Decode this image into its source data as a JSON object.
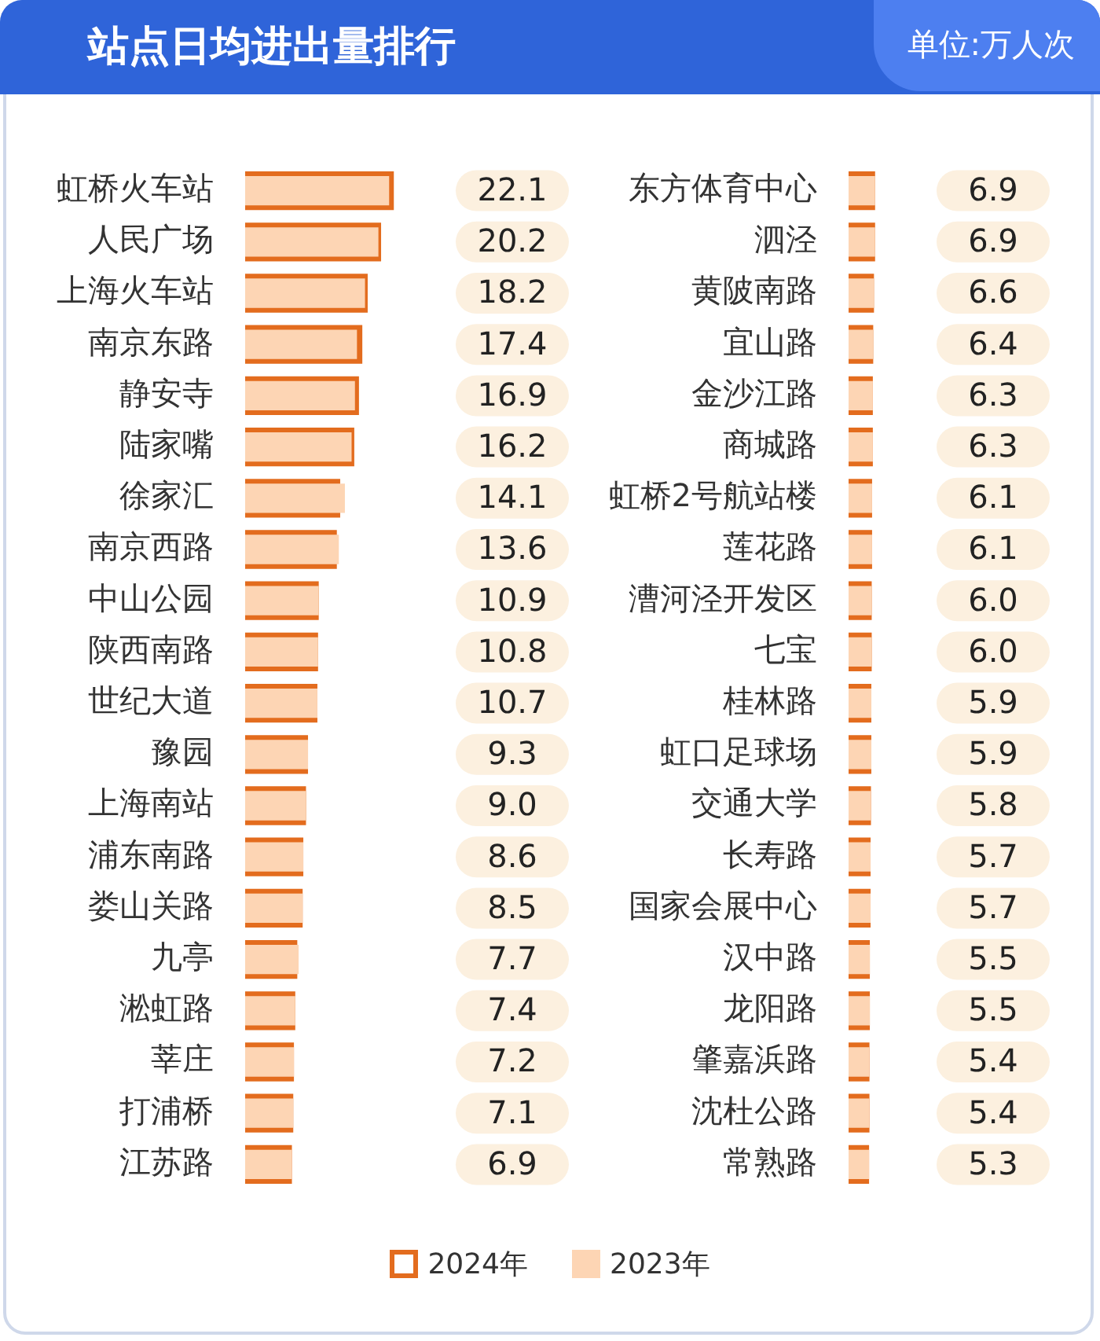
{
  "chart_data": [
    {
      "type": "bar",
      "orientation": "horizontal",
      "title": "站点日均进出量排行",
      "annotations": [
        "单位:万人次"
      ],
      "legend": "bottom",
      "tick_labels": "y",
      "categories": [
        "虹桥火车站",
        "人民广场",
        "上海火车站",
        "南京东路",
        "静安寺",
        "陆家嘴",
        "徐家汇",
        "南京西路",
        "中山公园",
        "陕西南路",
        "世纪大道",
        "豫园",
        "上海南站",
        "浦东南路",
        "娄山关路",
        "九亭",
        "淞虹路",
        "莘庄",
        "打浦桥",
        "江苏路"
      ],
      "series": [
        {
          "name": "2024年",
          "color": "#e36c1e",
          "values": [
            22.1,
            20.2,
            18.2,
            17.4,
            16.9,
            16.2,
            14.1,
            13.6,
            10.9,
            10.8,
            10.7,
            9.3,
            9.0,
            8.6,
            8.5,
            7.7,
            7.4,
            7.2,
            7.1,
            6.9
          ],
          "value_labels": [
            "22.1",
            "20.2",
            "18.2",
            "17.4",
            "16.9",
            "16.2",
            "14.1",
            "13.6",
            "10.9",
            "10.8",
            "10.7",
            "9.3",
            "9.0",
            "8.6",
            "8.5",
            "7.7",
            "7.4",
            "7.2",
            "7.1",
            "6.9"
          ]
        },
        {
          "name": "2023年",
          "color": "#fdd5b4",
          "values": [
            21.4,
            19.8,
            17.8,
            16.6,
            16.3,
            15.8,
            14.8,
            13.9,
            10.9,
            10.8,
            10.7,
            9.3,
            9.0,
            8.6,
            8.5,
            7.9,
            7.4,
            7.2,
            7.1,
            6.9
          ]
        }
      ]
    },
    {
      "type": "bar",
      "orientation": "horizontal",
      "tick_labels": "y",
      "categories": [
        "东方体育中心",
        "泗泾",
        "黄陂南路",
        "宜山路",
        "金沙江路",
        "商城路",
        "虹桥2号航站楼",
        "莲花路",
        "漕河泾开发区",
        "七宝",
        "桂林路",
        "虹口足球场",
        "交通大学",
        "长寿路",
        "国家会展中心",
        "汉中路",
        "龙阳路",
        "肇嘉浜路",
        "沈杜公路",
        "常熟路"
      ],
      "series": [
        {
          "color": "#e36c1e",
          "values": [
            6.9,
            6.9,
            6.6,
            6.4,
            6.3,
            6.3,
            6.1,
            6.1,
            6.0,
            6.0,
            5.9,
            5.9,
            5.8,
            5.7,
            5.7,
            5.5,
            5.5,
            5.4,
            5.4,
            5.3
          ],
          "value_labels": [
            "6.9",
            "6.9",
            "6.6",
            "6.4",
            "6.3",
            "6.3",
            "6.1",
            "6.1",
            "6.0",
            "6.0",
            "5.9",
            "5.9",
            "5.8",
            "5.7",
            "5.7",
            "5.5",
            "5.5",
            "5.4",
            "5.4",
            "5.3"
          ]
        },
        {
          "color": "#fdd5b4",
          "values": [
            6.9,
            6.9,
            6.6,
            6.4,
            6.3,
            6.3,
            6.1,
            6.1,
            6.0,
            6.0,
            5.9,
            5.9,
            5.8,
            5.7,
            5.7,
            5.5,
            5.5,
            5.4,
            5.4,
            5.3
          ]
        }
      ]
    }
  ]
}
